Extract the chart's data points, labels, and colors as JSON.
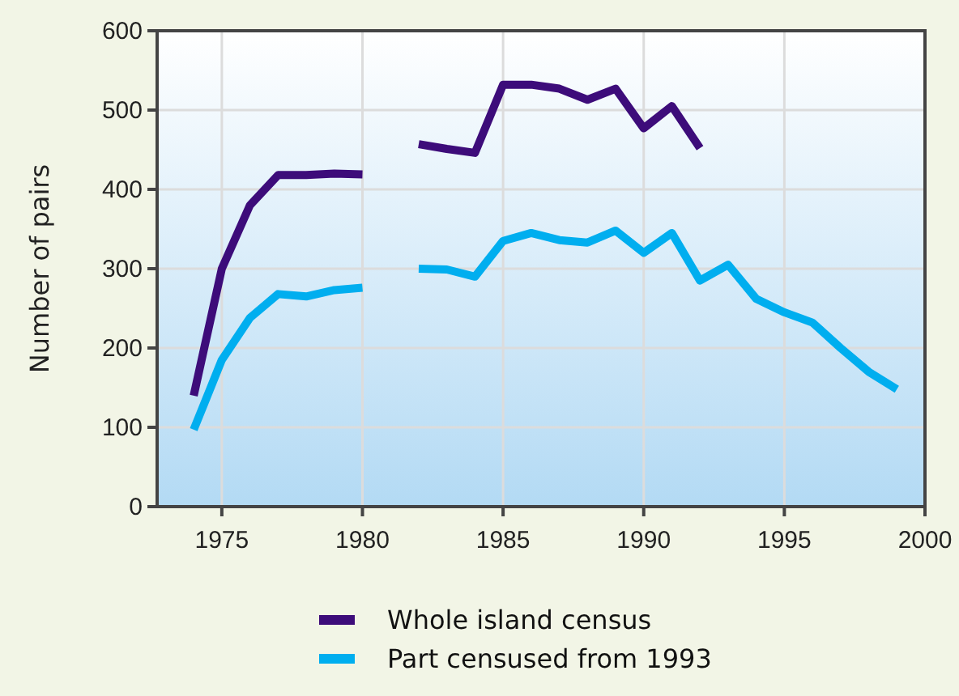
{
  "chart_data": {
    "type": "line",
    "ylabel": "Number of pairs",
    "x": [
      1974,
      1975,
      1976,
      1977,
      1978,
      1979,
      1980,
      1981,
      1982,
      1983,
      1984,
      1985,
      1986,
      1987,
      1988,
      1989,
      1990,
      1991,
      1992,
      1993,
      1994,
      1995,
      1996,
      1997,
      1998,
      1999
    ],
    "series": [
      {
        "name": "Whole island census",
        "color": "#3d0c7a",
        "values": [
          140,
          300,
          380,
          418,
          418,
          420,
          419,
          null,
          457,
          451,
          446,
          532,
          532,
          527,
          513,
          527,
          477,
          505,
          452,
          null,
          null,
          null,
          null,
          null,
          null,
          null
        ]
      },
      {
        "name": "Part censused from 1993",
        "color": "#00aeef",
        "values": [
          97,
          185,
          238,
          268,
          265,
          273,
          276,
          null,
          300,
          299,
          290,
          335,
          345,
          336,
          333,
          348,
          320,
          345,
          285,
          305,
          262,
          245,
          232,
          200,
          170,
          148
        ]
      }
    ],
    "xlim": [
      1972.7,
      2000
    ],
    "xticks": [
      1975,
      1980,
      1985,
      1990,
      1995,
      2000
    ],
    "ylim": [
      0,
      600
    ],
    "yticks": [
      0,
      100,
      200,
      300,
      400,
      500,
      600
    ],
    "grid": true,
    "legend": "bottom",
    "marker": "none",
    "line_style": "solid"
  }
}
